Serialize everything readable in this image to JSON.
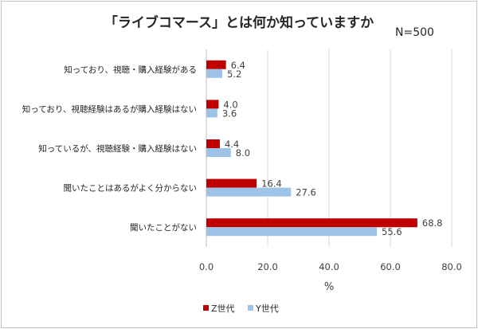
{
  "chart_data": {
    "type": "bar",
    "orientation": "horizontal",
    "title": "「ライブコマース」とは何か知っていますか",
    "note": "N=500",
    "categories": [
      "知っており、視聴・購入経験がある",
      "知っており、視聴経験はあるが購入経験はない",
      "知っているが、視聴経験・購入経験はない",
      "聞いたことはあるがよく分からない",
      "聞いたことがない"
    ],
    "series": [
      {
        "name": "Z世代",
        "color": "#c00000",
        "values": [
          6.4,
          4.0,
          4.4,
          16.4,
          68.8
        ]
      },
      {
        "name": "Y世代",
        "color": "#9dc3e6",
        "values": [
          5.2,
          3.6,
          8.0,
          27.6,
          55.6
        ]
      }
    ],
    "xlabel": "%",
    "xlim": [
      0,
      80
    ],
    "xticks": [
      "0.0",
      "20.0",
      "40.0",
      "60.0",
      "80.0"
    ],
    "grid": true,
    "legend": "bottom"
  }
}
